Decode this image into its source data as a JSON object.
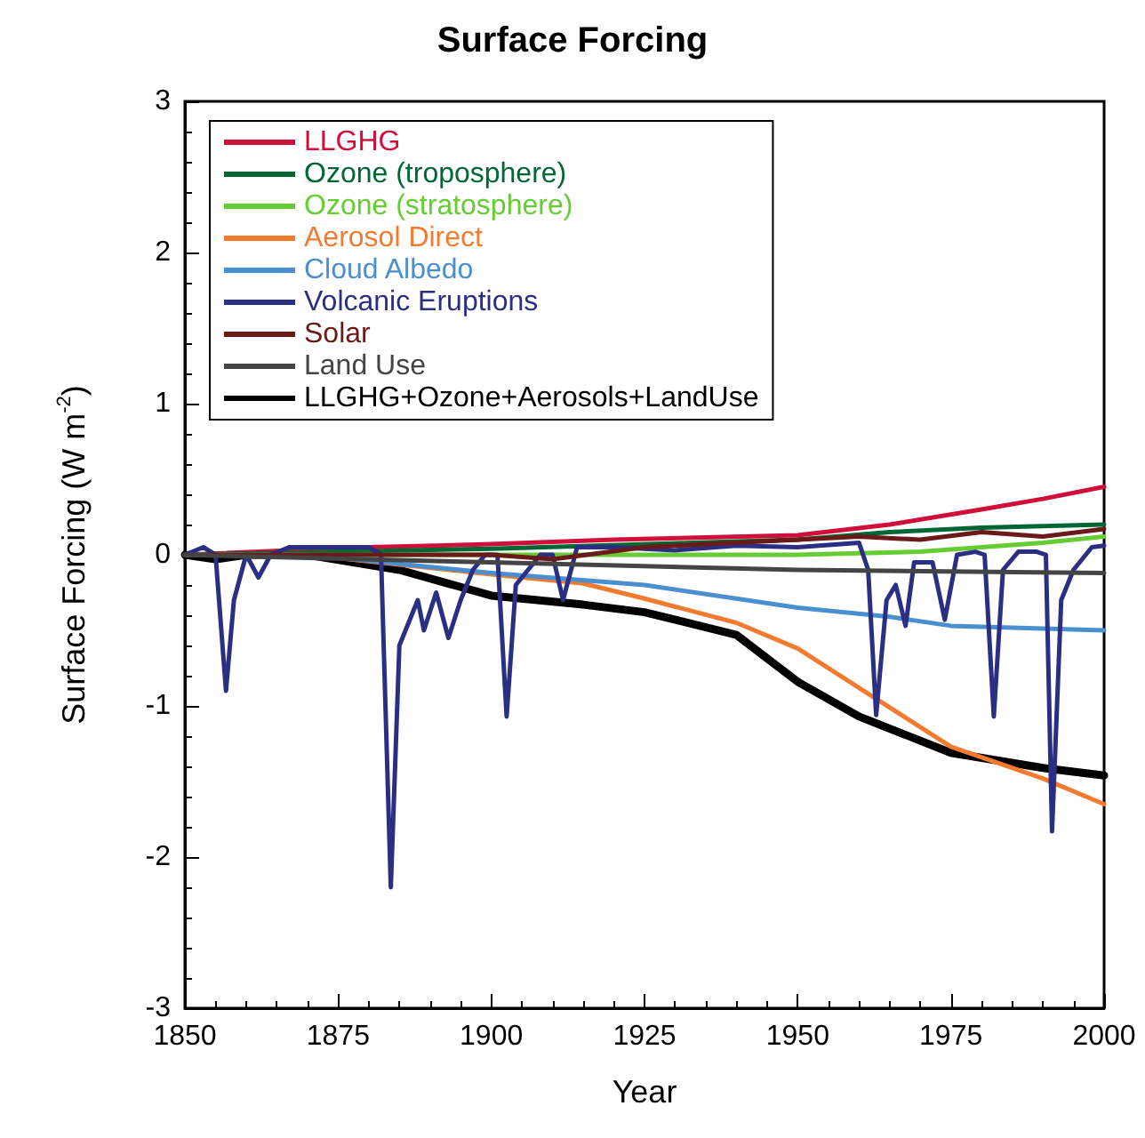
{
  "chart_data": {
    "type": "line",
    "title": "Surface Forcing",
    "xlabel": "Year",
    "ylabel": "Surface Forcing (W m$^{-2}$)",
    "xlim": [
      1850,
      2000
    ],
    "xticks": [
      1850,
      1875,
      1900,
      1925,
      1950,
      1975,
      2000
    ],
    "ylim": [
      -3,
      3
    ],
    "yticks": [
      -3,
      -2,
      -1,
      0,
      1,
      2,
      3
    ],
    "grid": false,
    "legend": "top left",
    "marker": "none",
    "line_style": "solid",
    "series": [
      {
        "name": "LLGHG",
        "color": "#d0103a",
        "x": [
          1850,
          1880,
          1900,
          1920,
          1950,
          1965,
          1980,
          1990,
          2000
        ],
        "values": [
          0,
          0.05,
          0.07,
          0.1,
          0.13,
          0.2,
          0.3,
          0.37,
          0.45
        ]
      },
      {
        "name": "Ozone (troposphere)",
        "color": "#006633",
        "x": [
          1850,
          1900,
          1950,
          1965,
          1980,
          2000
        ],
        "values": [
          0,
          0.04,
          0.1,
          0.15,
          0.18,
          0.2
        ]
      },
      {
        "name": "Ozone (stratosphere)",
        "color": "#66cc33",
        "x": [
          1850,
          1950,
          1970,
          1980,
          1990,
          2000
        ],
        "values": [
          0,
          0,
          0.02,
          0.05,
          0.08,
          0.12
        ]
      },
      {
        "name": "Aerosol Direct",
        "color": "#f47a30",
        "x": [
          1850,
          1870,
          1900,
          1915,
          1925,
          1940,
          1950,
          1960,
          1975,
          1990,
          2000
        ],
        "values": [
          0,
          0,
          -0.13,
          -0.19,
          -0.29,
          -0.45,
          -0.62,
          -0.88,
          -1.27,
          -1.48,
          -1.65
        ]
      },
      {
        "name": "Cloud Albedo",
        "color": "#4a90d0",
        "x": [
          1850,
          1870,
          1900,
          1925,
          1950,
          1965,
          1975,
          2000
        ],
        "values": [
          0,
          0,
          -0.12,
          -0.2,
          -0.35,
          -0.41,
          -0.47,
          -0.5
        ]
      },
      {
        "name": "Volcanic Eruptions",
        "color": "#2b2f84",
        "x": [
          1850,
          1853,
          1855,
          1856.7,
          1858,
          1860,
          1862,
          1864,
          1867,
          1880,
          1882,
          1883.6,
          1885,
          1886,
          1888,
          1889,
          1891,
          1893,
          1895,
          1897,
          1899,
          1901,
          1902.5,
          1904,
          1906,
          1908,
          1910,
          1911.7,
          1914,
          1920,
          1930,
          1940,
          1950,
          1960,
          1961.5,
          1962.8,
          1964.5,
          1966,
          1967.6,
          1969,
          1972,
          1974,
          1976,
          1979,
          1980.5,
          1982,
          1983.5,
          1986,
          1989,
          1990.5,
          1991.5,
          1993,
          1995,
          1998,
          2000
        ],
        "values": [
          0,
          0.05,
          0,
          -0.9,
          -0.3,
          0,
          -0.15,
          0,
          0.05,
          0.05,
          0,
          -2.2,
          -0.6,
          -0.5,
          -0.3,
          -0.5,
          -0.25,
          -0.55,
          -0.3,
          -0.1,
          0,
          0,
          -1.07,
          -0.2,
          -0.1,
          0,
          0,
          -0.3,
          0.05,
          0.05,
          0.03,
          0.06,
          0.05,
          0.08,
          -0.1,
          -1.06,
          -0.3,
          -0.2,
          -0.47,
          -0.05,
          -0.05,
          -0.43,
          0,
          0.02,
          0,
          -1.07,
          -0.1,
          0.02,
          0.02,
          0,
          -1.83,
          -0.3,
          -0.1,
          0.05,
          0.06
        ]
      },
      {
        "name": "Solar",
        "color": "#6b1a1a",
        "x": [
          1850,
          1900,
          1910,
          1925,
          1950,
          1960,
          1970,
          1980,
          1990,
          2000
        ],
        "values": [
          0,
          0,
          -0.03,
          0.05,
          0.1,
          0.12,
          0.1,
          0.15,
          0.12,
          0.17
        ]
      },
      {
        "name": "Land Use",
        "color": "#444444",
        "x": [
          1850,
          1900,
          1950,
          2000
        ],
        "values": [
          0,
          -0.05,
          -0.1,
          -0.12
        ]
      },
      {
        "name": "LLGHG+Ozone+Aerosols+LandUse",
        "color": "#000000",
        "x": [
          1850,
          1855,
          1860,
          1870,
          1885,
          1900,
          1915,
          1925,
          1940,
          1950,
          1960,
          1975,
          1990,
          2000
        ],
        "values": [
          0,
          -0.03,
          0,
          0,
          -0.1,
          -0.27,
          -0.33,
          -0.38,
          -0.53,
          -0.84,
          -1.07,
          -1.31,
          -1.41,
          -1.46
        ]
      }
    ]
  }
}
